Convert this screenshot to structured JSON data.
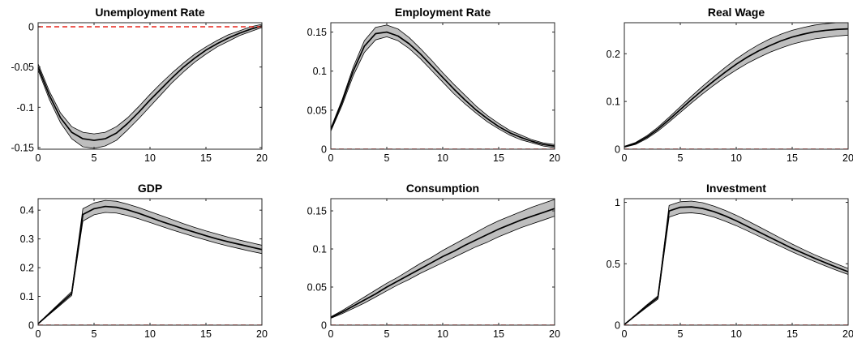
{
  "colors": {
    "median": "#000000",
    "band": "#bebebe",
    "band_edge": "#000000",
    "zero_line": "#e8261d",
    "axis": "#262626"
  },
  "chart_data": [
    {
      "type": "area",
      "title": "Unemployment Rate",
      "xlabel": "",
      "ylabel": "",
      "xlim": [
        0,
        20
      ],
      "ylim": [
        -0.152,
        0.005
      ],
      "xticks": [
        "0",
        "5",
        "10",
        "15",
        "20"
      ],
      "yticks": [
        "-0.15",
        "-0.1",
        "-0.05",
        "0"
      ],
      "ytick_values": [
        -0.15,
        -0.1,
        -0.05,
        0
      ],
      "zero_line": 0,
      "x": [
        0,
        1,
        2,
        3,
        4,
        5,
        6,
        7,
        8,
        9,
        10,
        11,
        12,
        13,
        14,
        15,
        16,
        17,
        18,
        19,
        20
      ],
      "median": [
        -0.05,
        -0.085,
        -0.113,
        -0.131,
        -0.139,
        -0.141,
        -0.139,
        -0.132,
        -0.12,
        -0.106,
        -0.091,
        -0.077,
        -0.063,
        -0.05,
        -0.039,
        -0.029,
        -0.021,
        -0.014,
        -0.008,
        -0.003,
        0.001
      ],
      "lower": [
        -0.054,
        -0.09,
        -0.119,
        -0.139,
        -0.149,
        -0.151,
        -0.148,
        -0.141,
        -0.128,
        -0.114,
        -0.099,
        -0.084,
        -0.069,
        -0.056,
        -0.044,
        -0.034,
        -0.025,
        -0.018,
        -0.011,
        -0.006,
        -0.001
      ],
      "upper": [
        -0.046,
        -0.08,
        -0.107,
        -0.124,
        -0.131,
        -0.133,
        -0.131,
        -0.124,
        -0.113,
        -0.099,
        -0.084,
        -0.07,
        -0.057,
        -0.045,
        -0.034,
        -0.025,
        -0.017,
        -0.01,
        -0.005,
        0.0,
        0.003
      ]
    },
    {
      "type": "area",
      "title": "Employment Rate",
      "xlabel": "",
      "ylabel": "",
      "xlim": [
        0,
        20
      ],
      "ylim": [
        0,
        0.162
      ],
      "xticks": [
        "0",
        "5",
        "10",
        "15",
        "20"
      ],
      "yticks": [
        "0",
        "0.05",
        "0.1",
        "0.15"
      ],
      "ytick_values": [
        0,
        0.05,
        0.1,
        0.15
      ],
      "zero_line": 0,
      "x": [
        0,
        1,
        2,
        3,
        4,
        5,
        6,
        7,
        8,
        9,
        10,
        11,
        12,
        13,
        14,
        15,
        16,
        17,
        18,
        19,
        20
      ],
      "median": [
        0.025,
        0.06,
        0.1,
        0.132,
        0.148,
        0.15,
        0.145,
        0.135,
        0.122,
        0.107,
        0.092,
        0.077,
        0.063,
        0.05,
        0.039,
        0.029,
        0.021,
        0.015,
        0.01,
        0.006,
        0.004
      ],
      "lower": [
        0.023,
        0.056,
        0.094,
        0.124,
        0.14,
        0.144,
        0.139,
        0.129,
        0.116,
        0.101,
        0.086,
        0.071,
        0.058,
        0.046,
        0.035,
        0.026,
        0.018,
        0.012,
        0.008,
        0.004,
        0.002
      ],
      "upper": [
        0.027,
        0.063,
        0.105,
        0.139,
        0.156,
        0.159,
        0.154,
        0.143,
        0.129,
        0.114,
        0.098,
        0.083,
        0.069,
        0.055,
        0.043,
        0.033,
        0.024,
        0.018,
        0.012,
        0.008,
        0.006
      ]
    },
    {
      "type": "area",
      "title": "Real Wage",
      "xlabel": "",
      "ylabel": "",
      "xlim": [
        0,
        20
      ],
      "ylim": [
        0,
        0.265
      ],
      "xticks": [
        "0",
        "5",
        "10",
        "15",
        "20"
      ],
      "yticks": [
        "0",
        "0.1",
        "0.2"
      ],
      "ytick_values": [
        0,
        0.1,
        0.2
      ],
      "zero_line": 0,
      "x": [
        0,
        1,
        2,
        3,
        4,
        5,
        6,
        7,
        8,
        9,
        10,
        11,
        12,
        13,
        14,
        15,
        16,
        17,
        18,
        19,
        20
      ],
      "median": [
        0.005,
        0.012,
        0.025,
        0.042,
        0.062,
        0.083,
        0.104,
        0.124,
        0.143,
        0.161,
        0.178,
        0.193,
        0.206,
        0.217,
        0.227,
        0.235,
        0.241,
        0.246,
        0.249,
        0.251,
        0.252
      ],
      "lower": [
        0.004,
        0.01,
        0.022,
        0.038,
        0.057,
        0.077,
        0.097,
        0.116,
        0.134,
        0.151,
        0.166,
        0.18,
        0.192,
        0.203,
        0.212,
        0.22,
        0.226,
        0.231,
        0.234,
        0.237,
        0.239
      ],
      "upper": [
        0.006,
        0.014,
        0.028,
        0.046,
        0.067,
        0.089,
        0.111,
        0.132,
        0.152,
        0.171,
        0.189,
        0.205,
        0.219,
        0.231,
        0.241,
        0.249,
        0.255,
        0.26,
        0.263,
        0.265,
        0.266
      ]
    },
    {
      "type": "area",
      "title": "GDP",
      "xlabel": "",
      "ylabel": "",
      "xlim": [
        0,
        20
      ],
      "ylim": [
        0,
        0.44
      ],
      "xticks": [
        "0",
        "5",
        "10",
        "15",
        "20"
      ],
      "yticks": [
        "0",
        "0.1",
        "0.2",
        "0.3",
        "0.4"
      ],
      "ytick_values": [
        0,
        0.1,
        0.2,
        0.3,
        0.4
      ],
      "zero_line": 0,
      "x": [
        0,
        1,
        2,
        3,
        4,
        5,
        6,
        7,
        8,
        9,
        10,
        11,
        12,
        13,
        14,
        15,
        16,
        17,
        18,
        19,
        20
      ],
      "median": [
        0.005,
        0.04,
        0.075,
        0.11,
        0.385,
        0.405,
        0.413,
        0.41,
        0.401,
        0.389,
        0.375,
        0.361,
        0.348,
        0.335,
        0.323,
        0.311,
        0.3,
        0.29,
        0.281,
        0.272,
        0.263
      ],
      "lower": [
        0.004,
        0.037,
        0.07,
        0.103,
        0.362,
        0.384,
        0.392,
        0.39,
        0.381,
        0.37,
        0.357,
        0.344,
        0.331,
        0.319,
        0.307,
        0.296,
        0.285,
        0.275,
        0.266,
        0.257,
        0.249
      ],
      "upper": [
        0.006,
        0.043,
        0.08,
        0.117,
        0.405,
        0.425,
        0.434,
        0.431,
        0.421,
        0.409,
        0.395,
        0.381,
        0.367,
        0.353,
        0.34,
        0.328,
        0.317,
        0.306,
        0.296,
        0.287,
        0.278
      ]
    },
    {
      "type": "area",
      "title": "Consumption",
      "xlabel": "",
      "ylabel": "",
      "xlim": [
        0,
        20
      ],
      "ylim": [
        0,
        0.166
      ],
      "xticks": [
        "0",
        "5",
        "10",
        "15",
        "20"
      ],
      "yticks": [
        "0",
        "0.05",
        "0.1",
        "0.15"
      ],
      "ytick_values": [
        0,
        0.05,
        0.1,
        0.15
      ],
      "zero_line": 0,
      "x": [
        0,
        1,
        2,
        3,
        4,
        5,
        6,
        7,
        8,
        9,
        10,
        11,
        12,
        13,
        14,
        15,
        16,
        17,
        18,
        19,
        20
      ],
      "median": [
        0.01,
        0.017,
        0.025,
        0.033,
        0.041,
        0.05,
        0.058,
        0.066,
        0.074,
        0.082,
        0.09,
        0.097,
        0.105,
        0.112,
        0.119,
        0.126,
        0.132,
        0.138,
        0.143,
        0.148,
        0.153
      ],
      "lower": [
        0.009,
        0.015,
        0.022,
        0.029,
        0.037,
        0.045,
        0.053,
        0.06,
        0.068,
        0.075,
        0.082,
        0.089,
        0.096,
        0.103,
        0.109,
        0.116,
        0.122,
        0.128,
        0.133,
        0.138,
        0.143
      ],
      "upper": [
        0.011,
        0.019,
        0.028,
        0.037,
        0.046,
        0.055,
        0.063,
        0.072,
        0.081,
        0.089,
        0.098,
        0.106,
        0.114,
        0.122,
        0.13,
        0.137,
        0.143,
        0.149,
        0.155,
        0.16,
        0.165
      ]
    },
    {
      "type": "area",
      "title": "Investment",
      "xlabel": "",
      "ylabel": "",
      "xlim": [
        0,
        20
      ],
      "ylim": [
        0,
        1.03
      ],
      "xticks": [
        "0",
        "5",
        "10",
        "15",
        "20"
      ],
      "yticks": [
        "0",
        "0.5",
        "1"
      ],
      "ytick_values": [
        0,
        0.5,
        1
      ],
      "zero_line": 0,
      "x": [
        0,
        1,
        2,
        3,
        4,
        5,
        6,
        7,
        8,
        9,
        10,
        11,
        12,
        13,
        14,
        15,
        16,
        17,
        18,
        19,
        20
      ],
      "median": [
        0.005,
        0.08,
        0.155,
        0.225,
        0.93,
        0.96,
        0.963,
        0.95,
        0.925,
        0.89,
        0.85,
        0.805,
        0.76,
        0.715,
        0.67,
        0.625,
        0.585,
        0.545,
        0.507,
        0.47,
        0.435
      ],
      "lower": [
        0.004,
        0.075,
        0.145,
        0.212,
        0.88,
        0.91,
        0.915,
        0.904,
        0.88,
        0.847,
        0.81,
        0.768,
        0.725,
        0.682,
        0.64,
        0.597,
        0.557,
        0.518,
        0.481,
        0.446,
        0.413
      ],
      "upper": [
        0.006,
        0.085,
        0.165,
        0.238,
        0.975,
        1.005,
        1.01,
        0.997,
        0.97,
        0.935,
        0.895,
        0.85,
        0.803,
        0.755,
        0.707,
        0.66,
        0.616,
        0.574,
        0.535,
        0.498,
        0.462
      ]
    }
  ]
}
